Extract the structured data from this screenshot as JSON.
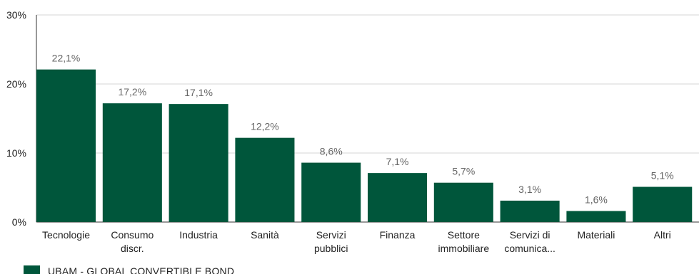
{
  "chart_data": {
    "type": "bar",
    "categories": [
      [
        "Tecnologie"
      ],
      [
        "Consumo",
        "discr."
      ],
      [
        "Industria"
      ],
      [
        "Sanità"
      ],
      [
        "Servizi",
        "pubblici"
      ],
      [
        "Finanza"
      ],
      [
        "Settore",
        "immobiliare"
      ],
      [
        "Servizi di",
        "comunica..."
      ],
      [
        "Materiali"
      ],
      [
        "Altri"
      ]
    ],
    "series": [
      {
        "name": "UBAM - GLOBAL CONVERTIBLE BOND",
        "values": [
          22.1,
          17.2,
          17.1,
          12.2,
          8.6,
          7.1,
          5.7,
          3.1,
          1.6,
          5.1
        ],
        "labels": [
          "22,1%",
          "17,2%",
          "17,1%",
          "12,2%",
          "8,6%",
          "7,1%",
          "5,7%",
          "3,1%",
          "1,6%",
          "5,1%"
        ],
        "color": "#00563b"
      }
    ],
    "ylim": [
      0,
      30
    ],
    "yticks": [
      0,
      10,
      20,
      30
    ],
    "ytick_labels": [
      "0%",
      "10%",
      "20%",
      "30%"
    ],
    "grid": true,
    "legend_position": "bottom-left"
  }
}
